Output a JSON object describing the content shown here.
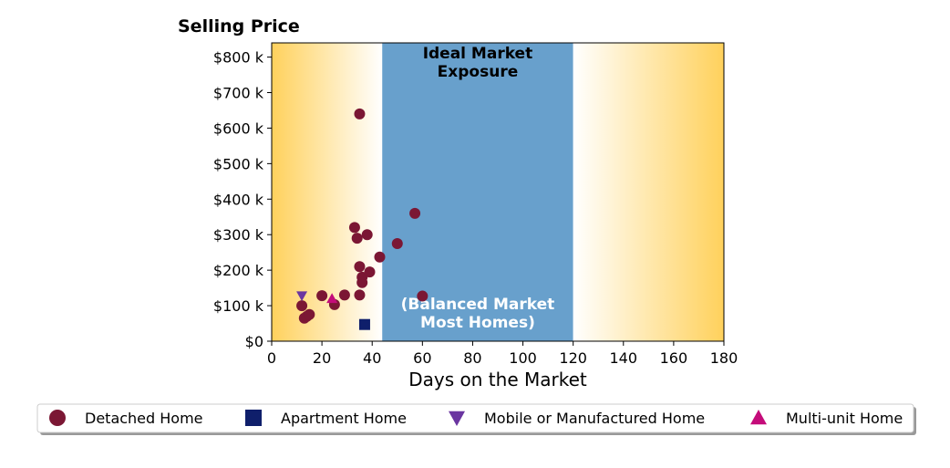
{
  "chart_data": {
    "type": "scatter",
    "title": "Selling Price",
    "xlabel": "Days on the Market",
    "ylabel": "",
    "xlim": [
      0,
      180
    ],
    "ylim": [
      0,
      840000
    ],
    "x_ticks": [
      0,
      20,
      40,
      60,
      80,
      100,
      120,
      140,
      160,
      180
    ],
    "x_tick_labels": [
      "0",
      "20",
      "40",
      "60",
      "80",
      "100",
      "120",
      "140",
      "160",
      "180"
    ],
    "y_ticks": [
      0,
      100000,
      200000,
      300000,
      400000,
      500000,
      600000,
      700000,
      800000
    ],
    "y_tick_labels": [
      "$0",
      "$100 k",
      "$200 k",
      "$300 k",
      "$400 k",
      "$500 k",
      "$600 k",
      "$700 k",
      "$800 k"
    ],
    "bands": [
      {
        "from": 0,
        "to": 44,
        "style": "gradient-left",
        "color": "#ffd15c"
      },
      {
        "from": 44,
        "to": 120,
        "style": "solid",
        "color": "#68a0cc"
      },
      {
        "from": 120,
        "to": 180,
        "style": "gradient-right",
        "color": "#ffd15c"
      }
    ],
    "annotations": [
      {
        "lines": [
          "Ideal Market",
          "Exposure"
        ],
        "color": "#000000",
        "anchor": "top"
      },
      {
        "lines": [
          "(Balanced Market",
          "Most Homes)"
        ],
        "color": "#ffffff",
        "anchor": "bottom"
      }
    ],
    "legend_position": "bottom",
    "series": [
      {
        "name": "Detached Home",
        "marker": "circle",
        "color": "#7b1734",
        "points": [
          [
            12,
            100000
          ],
          [
            13,
            65000
          ],
          [
            14,
            70000
          ],
          [
            15,
            75000
          ],
          [
            20,
            128000
          ],
          [
            25,
            103000
          ],
          [
            29,
            130000
          ],
          [
            33,
            320000
          ],
          [
            34,
            290000
          ],
          [
            35,
            640000
          ],
          [
            35,
            210000
          ],
          [
            35,
            130000
          ],
          [
            36,
            180000
          ],
          [
            36,
            165000
          ],
          [
            38,
            300000
          ],
          [
            39,
            195000
          ],
          [
            43,
            237000
          ],
          [
            50,
            275000
          ],
          [
            57,
            360000
          ],
          [
            60,
            127000
          ]
        ]
      },
      {
        "name": "Apartment Home",
        "marker": "square",
        "color": "#0f1f6b",
        "points": [
          [
            37,
            47000
          ]
        ]
      },
      {
        "name": "Mobile or Manufactured Home",
        "marker": "triangle-down",
        "color": "#6a35a0",
        "points": [
          [
            12,
            128000
          ]
        ]
      },
      {
        "name": "Multi-unit Home",
        "marker": "triangle-up",
        "color": "#c40c7a",
        "points": [
          [
            24,
            120000
          ]
        ]
      }
    ]
  }
}
